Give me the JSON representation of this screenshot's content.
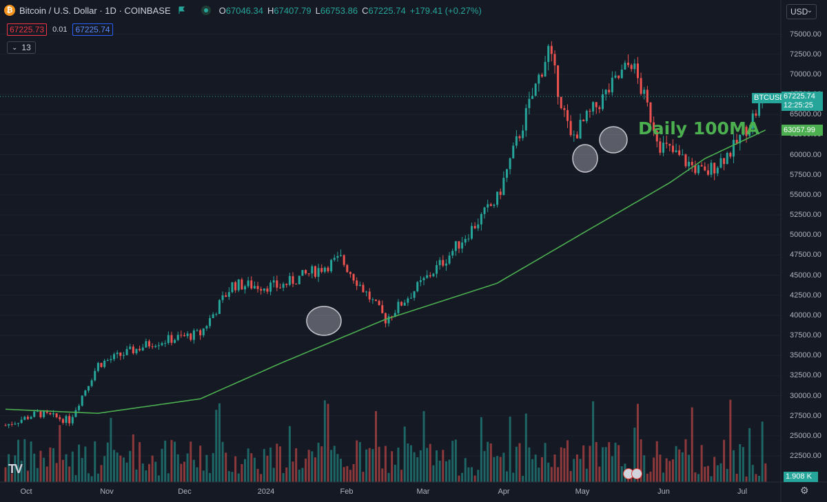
{
  "header": {
    "symbol_title": "Bitcoin / U.S. Dollar · 1D · COINBASE",
    "open_label": "O",
    "open": "67046.34",
    "high_label": "H",
    "high": "67407.79",
    "low_label": "L",
    "low": "66753.86",
    "close_label": "C",
    "close": "67225.74",
    "change": "+179.41 (+0.27%)",
    "bid": "67225.73",
    "spread": "0.01",
    "ask": "67225.74",
    "indicators_count": "13",
    "currency": "USD"
  },
  "icons": {
    "symbol": "bitcoin-icon",
    "flag": "flag-icon",
    "status": "market-open-dot-icon",
    "settings": "gear-icon",
    "logo": "tradingview-logo",
    "events": "us-flag-event-icons"
  },
  "colors": {
    "background": "#151924",
    "bull": "#26a69a",
    "bear": "#ef5350",
    "ma": "#4caf50",
    "grid": "#1e222d",
    "current_price_line": "#26a69a"
  },
  "annotation": "Daily 100MA",
  "price_axis": {
    "ticks": [
      "75000.00",
      "72500.00",
      "70000.00",
      "67500.00",
      "65000.00",
      "62500.00",
      "60000.00",
      "57500.00",
      "55000.00",
      "52500.00",
      "50000.00",
      "47500.00",
      "45000.00",
      "42500.00",
      "40000.00",
      "37500.00",
      "35000.00",
      "32500.00",
      "30000.00",
      "27500.00",
      "25000.00",
      "22500.00"
    ],
    "symbol_tag": "BTCUSD",
    "current_price": "67225.74",
    "countdown": "12:25:25",
    "ma_value": "63057.99",
    "volume_value": "1.908 K"
  },
  "time_axis": {
    "labels": [
      "Oct",
      "Nov",
      "Dec",
      "2024",
      "Feb",
      "Mar",
      "Apr",
      "May",
      "Jun",
      "Jul"
    ]
  },
  "chart_data": {
    "type": "candlestick",
    "title": "",
    "y_range": [
      20000,
      77500
    ],
    "x_range": [
      "2023-09-25",
      "2024-07-15"
    ],
    "price_series_monthly_approx": [
      {
        "date": "2023-09-25",
        "close": 26300
      },
      {
        "date": "2023-10-05",
        "close": 27800
      },
      {
        "date": "2023-10-15",
        "close": 26900
      },
      {
        "date": "2023-10-24",
        "close": 33900
      },
      {
        "date": "2023-11-10",
        "close": 36600
      },
      {
        "date": "2023-11-25",
        "close": 37700
      },
      {
        "date": "2023-12-05",
        "close": 43800
      },
      {
        "date": "2023-12-20",
        "close": 43600
      },
      {
        "date": "2024-01-08",
        "close": 47000
      },
      {
        "date": "2024-01-22",
        "close": 39500
      },
      {
        "date": "2024-02-10",
        "close": 47100
      },
      {
        "date": "2024-02-26",
        "close": 54500
      },
      {
        "date": "2024-03-13",
        "close": 73100
      },
      {
        "date": "2024-03-20",
        "close": 61900
      },
      {
        "date": "2024-04-08",
        "close": 71600
      },
      {
        "date": "2024-04-17",
        "close": 61300
      },
      {
        "date": "2024-05-01",
        "close": 57500
      },
      {
        "date": "2024-05-10",
        "close": 60800
      },
      {
        "date": "2024-05-20",
        "close": 67225.74
      }
    ],
    "ma_series": [
      {
        "name": "Daily 100MA",
        "points": [
          {
            "date": "2023-09-25",
            "value": 28300
          },
          {
            "date": "2023-10-24",
            "value": 27800
          },
          {
            "date": "2023-11-25",
            "value": 29600
          },
          {
            "date": "2023-12-20",
            "value": 34000
          },
          {
            "date": "2024-01-22",
            "value": 39500
          },
          {
            "date": "2024-02-26",
            "value": 44000
          },
          {
            "date": "2024-03-25",
            "value": 50500
          },
          {
            "date": "2024-04-20",
            "value": 56500
          },
          {
            "date": "2024-05-01",
            "value": 59500
          },
          {
            "date": "2024-05-20",
            "value": 63057.99
          }
        ]
      }
    ],
    "volume_visible": true
  }
}
